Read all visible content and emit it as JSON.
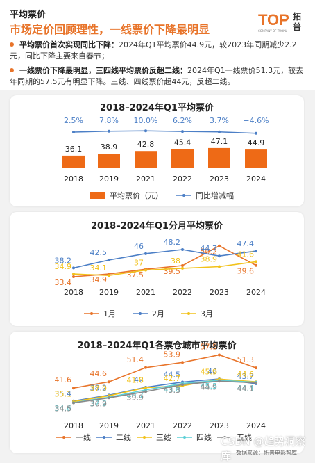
{
  "header": {
    "label": "平均票价",
    "headline": "市场定价回顾理性，一线票价下降最明显",
    "logo_text": "TOP",
    "logo_cn": "拓普",
    "logo_sub": "COMPANY OF TUOPU"
  },
  "bullets": [
    {
      "lead": "平均票价首次实现同比下降：",
      "text": "2024年Q1平均票价44.9元，较2023年同期减少2.2元，同比下降主要来自春节；"
    },
    {
      "lead": "一线票价下降最明显，三四线平均票价反超二线：",
      "text": "2024年Q1一线票价51.3元，较去年同期的57.5元有明显下降。三线、四线票价超44元，反超二线。"
    }
  ],
  "chart_data": [
    {
      "type": "bar",
      "title": "2018–2024年Q1平均票价",
      "categories": [
        "2018",
        "2019",
        "2021",
        "2022",
        "2023",
        "2024"
      ],
      "series": [
        {
          "name": "平均票价（元）",
          "kind": "bar",
          "values": [
            36.1,
            38.9,
            42.8,
            45.4,
            47.1,
            44.9
          ],
          "labels": [
            "36.1",
            "38.9",
            "42.8",
            "45.4",
            "47.1",
            "44.9"
          ],
          "color": "#ee6a16"
        },
        {
          "name": "同比增减幅",
          "kind": "line",
          "values": [
            2.5,
            7.8,
            10.0,
            6.2,
            3.7,
            -4.6
          ],
          "labels": [
            "2.5%",
            "7.8%",
            "10.0%",
            "6.2%",
            "3.7%",
            "−4.6%"
          ],
          "color": "#4c7fc6"
        }
      ]
    },
    {
      "type": "line",
      "title": "2018–2024年Q1分月平均票价",
      "categories": [
        "2018",
        "2019",
        "2021",
        "2022",
        "2023",
        "2024"
      ],
      "series": [
        {
          "name": "1月",
          "values": [
            33.4,
            34.9,
            37.5,
            39.5,
            50.2,
            39.6
          ],
          "color": "#e8742a"
        },
        {
          "name": "2月",
          "values": [
            38.2,
            42.5,
            46.0,
            48.2,
            44.7,
            47.4
          ],
          "color": "#4c7fc6"
        },
        {
          "name": "3月",
          "values": [
            34.9,
            34.1,
            37.0,
            38.0,
            38.9,
            41.6
          ],
          "color": "#f2c21b"
        }
      ]
    },
    {
      "type": "line",
      "title": "2018–2024年Q1各票仓城市平均票价",
      "categories": [
        "2018",
        "2019",
        "2021",
        "2022",
        "2023",
        "2024"
      ],
      "series": [
        {
          "name": "一线",
          "values": [
            41.6,
            44.6,
            51.4,
            53.9,
            57.5,
            51.3
          ],
          "color": "#e8742a"
        },
        {
          "name": "二线",
          "values": [
            35.4,
            38.2,
            42.0,
            44.5,
            46.0,
            43.7
          ],
          "color": "#4c7fc6"
        },
        {
          "name": "三线",
          "values": [
            35.1,
            37.9,
            41.8,
            42.7,
            45.9,
            44.6
          ],
          "color": "#f2c21b"
        },
        {
          "name": "四线",
          "values": [
            34.6,
            37.2,
            40.7,
            43.8,
            45.3,
            44.4
          ],
          "color": "#5ccfd6"
        },
        {
          "name": "五线",
          "values": [
            34.5,
            36.9,
            39.9,
            43.3,
            44.9,
            44.1
          ],
          "color": "#8a8a8a"
        }
      ]
    }
  ],
  "footer": {
    "watermark": "CSDN @趋势洞察库",
    "source": "数据来源：拓普电影智库"
  }
}
